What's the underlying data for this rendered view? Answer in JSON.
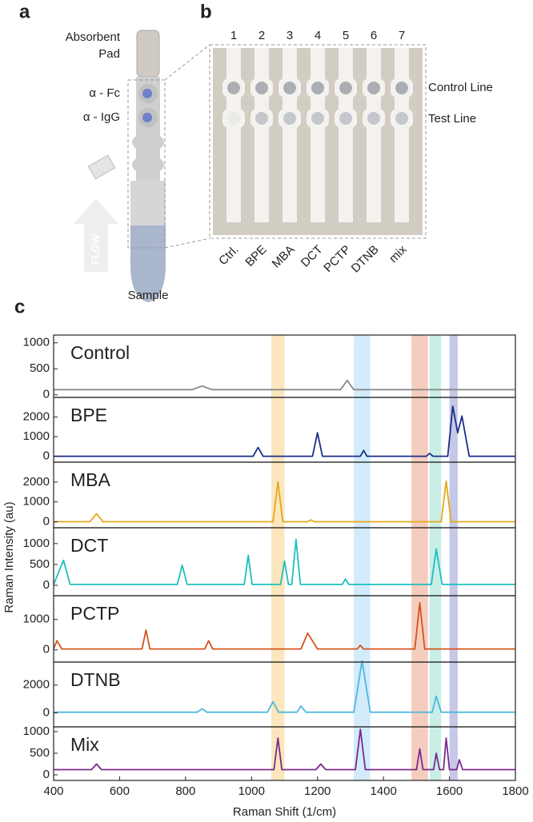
{
  "panel_a": {
    "letter": "a",
    "pad": [
      "Absorbent",
      "Pad"
    ],
    "fc": "α - Fc",
    "igg": "α - IgG",
    "flow": "FLOW",
    "sample": "Sample"
  },
  "panel_b": {
    "letter": "b",
    "lanes": [
      "1",
      "2",
      "3",
      "4",
      "5",
      "6",
      "7"
    ],
    "strips": [
      "Ctrl.",
      "BPE",
      "MBA",
      "DCT",
      "PCTP",
      "DTNB",
      "mix"
    ],
    "control_line": "Control Line",
    "test_line": "Test Line"
  },
  "panel_c": {
    "letter": "c",
    "ylabel": "Raman Intensity (au)",
    "bands": [
      {
        "range": [
          1060,
          1100
        ],
        "color": "#fbe6bd"
      },
      {
        "range": [
          1310,
          1360
        ],
        "color": "#d3ebfa"
      },
      {
        "range": [
          1485,
          1535
        ],
        "color": "#f5cdbf"
      },
      {
        "range": [
          1540,
          1575
        ],
        "color": "#c8eee6"
      },
      {
        "range": [
          1600,
          1625
        ],
        "color": "#c5c8e6"
      }
    ]
  },
  "chart_data": [
    {
      "type": "line",
      "title": "Control",
      "color": "#8a8a8a",
      "xlim": [
        400,
        1800
      ],
      "ylim": [
        -50,
        1150
      ],
      "yticks": [
        0,
        500,
        1000
      ],
      "x": [
        400,
        820,
        850,
        880,
        1270,
        1290,
        1310,
        1800
      ],
      "values": [
        100,
        100,
        170,
        100,
        100,
        280,
        100,
        100
      ]
    },
    {
      "type": "line",
      "title": "BPE",
      "color": "#1a2f8a",
      "xlim": [
        400,
        1800
      ],
      "ylim": [
        -300,
        3000
      ],
      "yticks": [
        0,
        1000,
        2000
      ],
      "x": [
        400,
        1005,
        1020,
        1035,
        1185,
        1200,
        1215,
        1330,
        1340,
        1350,
        1530,
        1540,
        1550,
        1595,
        1610,
        1625,
        1638,
        1660,
        1800
      ],
      "values": [
        0,
        0,
        450,
        0,
        0,
        1200,
        0,
        0,
        300,
        0,
        0,
        150,
        0,
        0,
        2550,
        1200,
        2050,
        0,
        0
      ]
    },
    {
      "type": "line",
      "title": "MBA",
      "color": "#e6a817",
      "xlim": [
        400,
        1800
      ],
      "ylim": [
        -300,
        3000
      ],
      "yticks": [
        0,
        1000,
        2000
      ],
      "x": [
        400,
        510,
        530,
        550,
        1065,
        1080,
        1095,
        1170,
        1180,
        1190,
        1575,
        1590,
        1605,
        1800
      ],
      "values": [
        0,
        0,
        400,
        0,
        0,
        2000,
        0,
        0,
        100,
        0,
        0,
        2050,
        0,
        0
      ]
    },
    {
      "type": "line",
      "title": "DCT",
      "color": "#1fbfbf",
      "xlim": [
        400,
        1800
      ],
      "ylim": [
        -250,
        1380
      ],
      "yticks": [
        0,
        500,
        1000
      ],
      "x": [
        400,
        430,
        450,
        775,
        790,
        805,
        978,
        990,
        1002,
        1088,
        1100,
        1112,
        1122,
        1135,
        1148,
        1275,
        1285,
        1295,
        1545,
        1560,
        1578,
        1800
      ],
      "values": [
        20,
        600,
        20,
        20,
        480,
        20,
        20,
        720,
        20,
        20,
        580,
        20,
        20,
        1100,
        20,
        20,
        150,
        20,
        20,
        870,
        20,
        20
      ]
    },
    {
      "type": "line",
      "title": "PCTP",
      "color": "#d4541c",
      "xlim": [
        400,
        1800
      ],
      "ylim": [
        -400,
        1780
      ],
      "yticks": [
        0,
        1000
      ],
      "x": [
        400,
        410,
        425,
        668,
        680,
        692,
        858,
        870,
        882,
        1150,
        1170,
        1200,
        1320,
        1330,
        1340,
        1495,
        1510,
        1525,
        1800
      ],
      "values": [
        30,
        300,
        30,
        30,
        650,
        30,
        30,
        300,
        30,
        30,
        550,
        30,
        30,
        150,
        30,
        30,
        1550,
        30,
        30
      ]
    },
    {
      "type": "line",
      "title": "DTNB",
      "color": "#4fb8e0",
      "xlim": [
        400,
        1800
      ],
      "ylim": [
        -1000,
        3650
      ],
      "yticks": [
        0,
        2000
      ],
      "x": [
        400,
        835,
        850,
        865,
        1048,
        1065,
        1082,
        1138,
        1150,
        1165,
        1310,
        1335,
        1360,
        1548,
        1560,
        1575,
        1800
      ],
      "values": [
        50,
        50,
        300,
        50,
        50,
        800,
        50,
        50,
        500,
        50,
        50,
        3750,
        50,
        50,
        1200,
        50,
        50
      ]
    },
    {
      "type": "line",
      "title": "Mix",
      "color": "#7b2a8c",
      "xlim": [
        400,
        1800
      ],
      "ylim": [
        -130,
        1110
      ],
      "yticks": [
        0,
        500,
        1000
      ],
      "x": [
        400,
        515,
        530,
        545,
        1068,
        1080,
        1092,
        1195,
        1210,
        1225,
        1315,
        1330,
        1345,
        1500,
        1510,
        1520,
        1552,
        1560,
        1570,
        1582,
        1590,
        1600,
        1622,
        1630,
        1640,
        1800
      ],
      "values": [
        120,
        120,
        250,
        120,
        120,
        850,
        120,
        120,
        250,
        120,
        120,
        1050,
        120,
        120,
        600,
        120,
        120,
        500,
        120,
        120,
        850,
        120,
        120,
        350,
        120,
        120
      ],
      "xticks": [
        400,
        600,
        800,
        1000,
        1200,
        1400,
        1600,
        1800
      ],
      "xlabel": "Raman Shift (1/cm)"
    }
  ]
}
